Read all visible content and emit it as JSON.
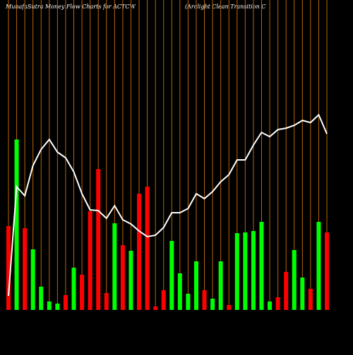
{
  "chart_data": {
    "type": "bar",
    "title": "MunafaSutra  Money Flow  Charts for ACTCW",
    "subtitle": "(Arclight Clean  Transition  C",
    "categories": [
      null,
      null,
      null,
      null,
      null,
      null,
      null,
      null,
      null,
      null,
      null,
      null,
      null,
      null,
      null,
      null,
      null,
      null,
      null,
      null,
      null,
      null,
      null,
      null,
      null,
      null,
      null,
      null,
      null,
      null,
      null,
      null,
      null,
      null,
      null,
      null,
      null,
      null,
      null,
      null
    ],
    "values": [
      119,
      242,
      116,
      86,
      33,
      12,
      9,
      21,
      60,
      50,
      140,
      200,
      24,
      123,
      92,
      84,
      165,
      175,
      5,
      28,
      98,
      52,
      23,
      69,
      28,
      16,
      69,
      7,
      109,
      110,
      112,
      125,
      12,
      18,
      54,
      85,
      46,
      30,
      125,
      110
    ],
    "colors": [
      "#ff0000",
      "#00ff00",
      "#ff0000",
      "#00ff00",
      "#00ff00",
      "#00ff00",
      "#00ff00",
      "#ff0000",
      "#00ff00",
      "#ff0000",
      "#ff0000",
      "#ff0000",
      "#ff0000",
      "#00ff00",
      "#ff0000",
      "#00ff00",
      "#ff0000",
      "#ff0000",
      "#ff0000",
      "#ff0000",
      "#00ff00",
      "#00ff00",
      "#00ff00",
      "#00ff00",
      "#ff0000",
      "#00ff00",
      "#00ff00",
      "#ff0000",
      "#00ff00",
      "#00ff00",
      "#00ff00",
      "#00ff00",
      "#00ff00",
      "#ff0000",
      "#ff0000",
      "#00ff00",
      "#00ff00",
      "#ff0000",
      "#00ff00",
      "#ff0000"
    ],
    "line": {
      "color": "#ffffff",
      "values": [
        20,
        175,
        162,
        205,
        228,
        242,
        224,
        216,
        196,
        165,
        142,
        141,
        130,
        148,
        128,
        122,
        112,
        104,
        106,
        117,
        138,
        138,
        144,
        165,
        158,
        168,
        182,
        192,
        213,
        213,
        234,
        252,
        246,
        256,
        258,
        262,
        269,
        266,
        277,
        250
      ]
    },
    "ylim": [
      0,
      440
    ],
    "grid_color": "#b8650a"
  }
}
